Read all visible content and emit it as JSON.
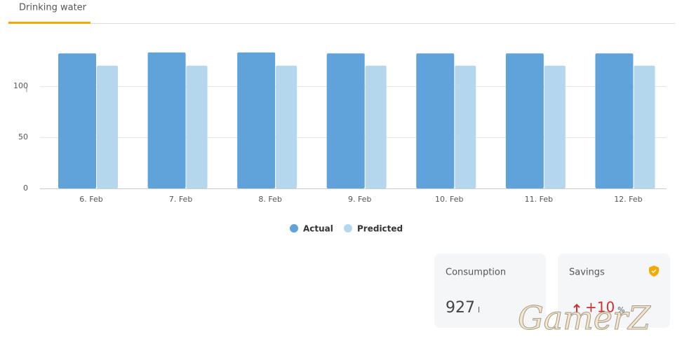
{
  "tab": "Drinking water",
  "chart_data": {
    "type": "bar",
    "categories": [
      "6. Feb",
      "7. Feb",
      "8. Feb",
      "9. Feb",
      "10. Feb",
      "11. Feb",
      "12. Feb"
    ],
    "series": [
      {
        "name": "Actual",
        "color": "#5fa3da",
        "values": [
          132,
          133,
          133,
          132,
          132,
          132,
          132
        ]
      },
      {
        "name": "Predicted",
        "color": "#b4d7ee",
        "values": [
          120,
          120,
          120,
          120,
          120,
          120,
          120
        ]
      }
    ],
    "ylim": [
      0,
      140
    ],
    "yticks": [
      0,
      50,
      100
    ],
    "y_unit": "l",
    "grid": true
  },
  "cards": [
    {
      "label": "Consumption",
      "value": "927",
      "unit": "l"
    },
    {
      "label": "Savings",
      "value": "+10",
      "unit": "%"
    }
  ],
  "watermark": "GamerZ"
}
